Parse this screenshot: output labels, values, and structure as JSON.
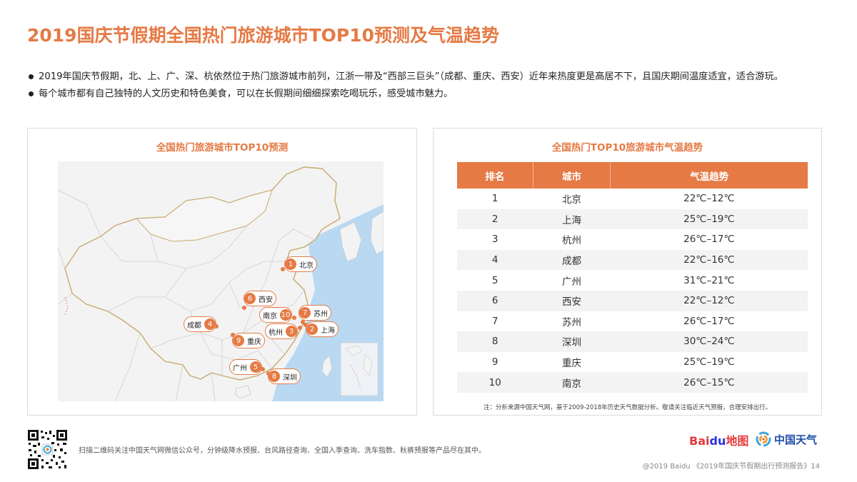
{
  "title": "2019国庆节假期全国热门旅游城市TOP10预测及气温趋势",
  "bullets": [
    "2019年国庆节假期，北、上、广、深、杭依然位于热门旅游城市前列，江浙一带及“西部三巨头”（成都、重庆、西安）近年来热度更是高居不下，且国庆期间温度适宜，适合游玩。",
    "每个城市都有自己独特的人文历史和特色美食，可以在长假期间细细探索吃喝玩乐，感受城市魅力。"
  ],
  "map_panel": {
    "title": "全国热门旅游城市TOP10预测",
    "pins": [
      {
        "num": "1",
        "label": "北京"
      },
      {
        "num": "2",
        "label": "上海"
      },
      {
        "num": "3",
        "label": "杭州"
      },
      {
        "num": "4",
        "label": "成都"
      },
      {
        "num": "5",
        "label": "广州"
      },
      {
        "num": "6",
        "label": "西安"
      },
      {
        "num": "7",
        "label": "苏州"
      },
      {
        "num": "8",
        "label": "深圳"
      },
      {
        "num": "9",
        "label": "重庆"
      },
      {
        "num": "10",
        "label": "南京"
      }
    ]
  },
  "table_panel": {
    "title": "全国热门TOP10旅游城市气温趋势",
    "headers": [
      "排名",
      "城市",
      "气温趋势"
    ],
    "rows": [
      [
        "1",
        "北京",
        "22℃–12℃"
      ],
      [
        "2",
        "上海",
        "25℃–19℃"
      ],
      [
        "3",
        "杭州",
        "26℃–17℃"
      ],
      [
        "4",
        "成都",
        "22℃–16℃"
      ],
      [
        "5",
        "广州",
        "31℃–21℃"
      ],
      [
        "6",
        "西安",
        "22℃–12℃"
      ],
      [
        "7",
        "苏州",
        "26℃–17℃"
      ],
      [
        "8",
        "深圳",
        "30℃–24℃"
      ],
      [
        "9",
        "重庆",
        "25℃–19℃"
      ],
      [
        "10",
        "南京",
        "26℃–15℃"
      ]
    ],
    "note": "注：分析来源中国天气网，基于2009-2018年历史天气数据分析。敬请关注临近天气预报，合理安排出行。"
  },
  "footer": {
    "qr_text": "扫描二维码关注中国天气网微信公众号，分钟级降水预报、台风路径查询、全国入季查询、洗车指数、秋裤预报等产品尽在其中。",
    "baidu_logo": {
      "part1": "Bai",
      "part2": "du",
      "part3": "地图"
    },
    "weather_logo": "中国天气",
    "copyright": "@2019 Baidu 《2019年国庆节假期出行预测报告》14"
  },
  "colors": {
    "accent": "#e57a45",
    "map_land": "#f3f3f3",
    "map_sea": "#b9d9f3",
    "border_line": "#c8a96b"
  }
}
